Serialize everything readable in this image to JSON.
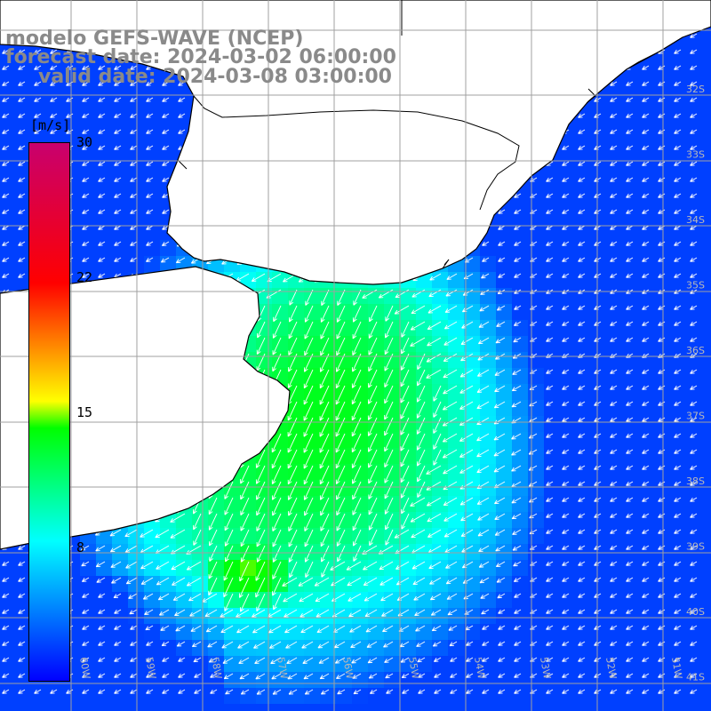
{
  "title": {
    "line1": "modelo GEFS-WAVE (NCEP)",
    "line2": "forecast date: 2024-03-02 06:00:00",
    "line3": "valid date: 2024-03-08 03:00:00"
  },
  "colorbar": {
    "unit": "[m/s]",
    "ticks": [
      "30",
      "22",
      "15",
      "8"
    ],
    "min": 0,
    "max": 30,
    "colors": [
      "#0000ff",
      "#00ffff",
      "#00ff00",
      "#ffff00",
      "#ff0000",
      "#c8006e"
    ]
  },
  "map": {
    "lon_labels": [
      "60W",
      "59W",
      "58W",
      "57W",
      "56W",
      "55W",
      "54W",
      "53W",
      "52W",
      "51W"
    ],
    "lat_labels": [
      "32S",
      "33S",
      "34S",
      "35S",
      "36S",
      "37S",
      "38S",
      "39S",
      "40S",
      "41S"
    ],
    "land_color": "#ffffff",
    "coastline_color": "#000000",
    "grid_color": "#a0a0a0",
    "arrow_color": "#ffffff"
  }
}
